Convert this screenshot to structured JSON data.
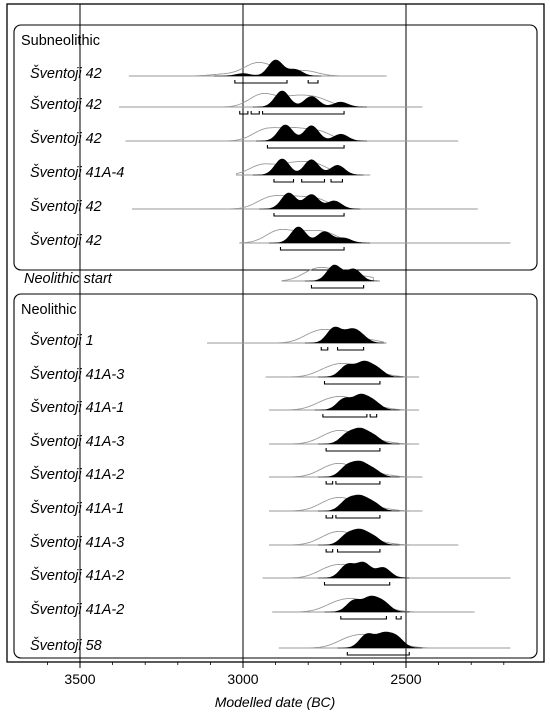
{
  "chart_data": {
    "type": "area",
    "xlabel": "Modelled date (BC)",
    "x_direction": "reversed",
    "xlim": [
      3720,
      2170
    ],
    "xticks": [
      3500,
      3000,
      2500
    ],
    "xtick_labels": [
      "3500",
      "3000",
      "2500"
    ],
    "groups": [
      {
        "name": "Subneolithic",
        "from": 0,
        "to": 5
      },
      {
        "name": "Neolithic",
        "from": 7,
        "to": 17
      }
    ],
    "series": [
      {
        "name": "Šventoji 42",
        "range": [
          3350,
          2560
        ],
        "posterior_peaks": [
          [
            2900,
            1.0
          ],
          [
            2840,
            0.4
          ],
          [
            3000,
            0.15
          ]
        ],
        "hpd": [
          [
            3025,
            2865
          ],
          [
            2800,
            2770
          ]
        ]
      },
      {
        "name": "Šventoji 42",
        "range": [
          3380,
          2450
        ],
        "posterior_peaks": [
          [
            2880,
            1.0
          ],
          [
            2790,
            0.65
          ],
          [
            2700,
            0.3
          ]
        ],
        "hpd": [
          [
            3010,
            2985
          ],
          [
            2975,
            2950
          ],
          [
            2940,
            2690
          ]
        ]
      },
      {
        "name": "Šventoji 42",
        "range": [
          3360,
          2340
        ],
        "posterior_peaks": [
          [
            2870,
            0.95
          ],
          [
            2790,
            0.9
          ],
          [
            2700,
            0.4
          ]
        ],
        "hpd": [
          [
            2925,
            2690
          ]
        ]
      },
      {
        "name": "Šventoji 41A-4",
        "range": [
          3020,
          2610
        ],
        "posterior_peaks": [
          [
            2880,
            1.0
          ],
          [
            2790,
            0.95
          ],
          [
            2710,
            0.6
          ]
        ],
        "hpd": [
          [
            2905,
            2845
          ],
          [
            2820,
            2750
          ],
          [
            2730,
            2695
          ]
        ]
      },
      {
        "name": "Šventoji 42",
        "range": [
          3340,
          2280
        ],
        "posterior_peaks": [
          [
            2860,
            1.0
          ],
          [
            2790,
            0.9
          ],
          [
            2720,
            0.5
          ]
        ],
        "hpd": [
          [
            2905,
            2690
          ]
        ]
      },
      {
        "name": "Šventoji 42",
        "range": [
          3010,
          2180
        ],
        "posterior_peaks": [
          [
            2830,
            1.0
          ],
          [
            2750,
            0.7
          ],
          [
            2690,
            0.3
          ]
        ],
        "hpd": [
          [
            2885,
            2690
          ]
        ]
      },
      {
        "name": "Neolithic start",
        "range": [
          2880,
          2600
        ],
        "posterior_peaks": [
          [
            2720,
            1.0
          ],
          [
            2660,
            0.75
          ]
        ],
        "hpd": [
          [
            2790,
            2630
          ]
        ]
      },
      {
        "name": "Šventoji 1",
        "range": [
          3110,
          2570
        ],
        "posterior_peaks": [
          [
            2720,
            1.0
          ],
          [
            2670,
            0.7
          ],
          [
            2640,
            0.45
          ]
        ],
        "hpd": [
          [
            2760,
            2740
          ],
          [
            2710,
            2630
          ]
        ]
      },
      {
        "name": "Šventoji 41A-3",
        "range": [
          2930,
          2460
        ],
        "posterior_peaks": [
          [
            2680,
            0.85
          ],
          [
            2630,
            1.0
          ],
          [
            2590,
            0.6
          ]
        ],
        "hpd": [
          [
            2750,
            2580
          ]
        ]
      },
      {
        "name": "Šventoji 41A-1",
        "range": [
          2920,
          2460
        ],
        "posterior_peaks": [
          [
            2690,
            0.8
          ],
          [
            2640,
            1.0
          ],
          [
            2600,
            0.6
          ]
        ],
        "hpd": [
          [
            2755,
            2620
          ],
          [
            2610,
            2590
          ]
        ]
      },
      {
        "name": "Šventoji 41A-3",
        "range": [
          2920,
          2460
        ],
        "posterior_peaks": [
          [
            2680,
            0.75
          ],
          [
            2640,
            1.0
          ],
          [
            2600,
            0.6
          ]
        ],
        "hpd": [
          [
            2745,
            2580
          ]
        ]
      },
      {
        "name": "Šventoji 41A-2",
        "range": [
          2920,
          2450
        ],
        "posterior_peaks": [
          [
            2680,
            0.85
          ],
          [
            2640,
            1.0
          ],
          [
            2600,
            0.55
          ]
        ],
        "hpd": [
          [
            2745,
            2725
          ],
          [
            2715,
            2580
          ]
        ]
      },
      {
        "name": "Šventoji 41A-1",
        "range": [
          2920,
          2450
        ],
        "posterior_peaks": [
          [
            2680,
            0.85
          ],
          [
            2640,
            1.0
          ],
          [
            2600,
            0.6
          ]
        ],
        "hpd": [
          [
            2745,
            2725
          ],
          [
            2715,
            2580
          ]
        ]
      },
      {
        "name": "Šventoji 41A-3",
        "range": [
          2920,
          2340
        ],
        "posterior_peaks": [
          [
            2680,
            0.8
          ],
          [
            2640,
            1.0
          ],
          [
            2600,
            0.6
          ]
        ],
        "hpd": [
          [
            2745,
            2725
          ],
          [
            2710,
            2580
          ]
        ]
      },
      {
        "name": "Šventoji 41A-2",
        "range": [
          2940,
          2180
        ],
        "posterior_peaks": [
          [
            2680,
            0.9
          ],
          [
            2630,
            1.0
          ],
          [
            2570,
            0.7
          ]
        ],
        "hpd": [
          [
            2750,
            2550
          ]
        ]
      },
      {
        "name": "Šventoji 41A-2",
        "range": [
          2910,
          2290
        ],
        "posterior_peaks": [
          [
            2660,
            0.85
          ],
          [
            2610,
            1.0
          ],
          [
            2570,
            0.7
          ]
        ],
        "hpd": [
          [
            2700,
            2560
          ],
          [
            2530,
            2515
          ]
        ]
      },
      {
        "name": "Šventoji 58",
        "range": [
          2890,
          2180
        ],
        "posterior_peaks": [
          [
            2620,
            1.0
          ],
          [
            2570,
            0.95
          ],
          [
            2530,
            0.8
          ]
        ],
        "hpd": [
          [
            2680,
            2490
          ]
        ]
      }
    ]
  }
}
